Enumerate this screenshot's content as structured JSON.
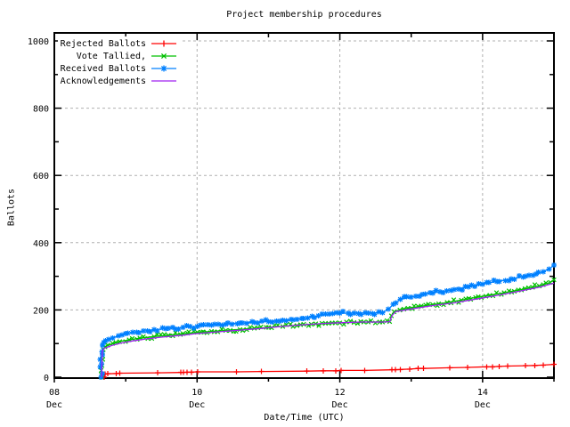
{
  "chart": {
    "title": "Project membership procedures",
    "xlabel": "Date/Time (UTC)",
    "ylabel": "Ballots"
  },
  "colors": {
    "background": "#ffffff",
    "border": "#000000",
    "grid": "#b0b0b0",
    "text": "#000000"
  },
  "chart_data": {
    "type": "line",
    "title": "Project membership procedures",
    "xlabel": "Date/Time (UTC)",
    "ylabel": "Ballots",
    "x_unit": "days since 08 Dec 00:00 (UTC)",
    "xlim": [
      0,
      7
    ],
    "ylim": [
      0,
      1000
    ],
    "grid": true,
    "grid_style": "dashed",
    "legend_position": "top-left-inside",
    "xticks": [
      {
        "day": 0,
        "line1": "08",
        "line2": "Dec"
      },
      {
        "day": 2,
        "line1": "10",
        "line2": "Dec"
      },
      {
        "day": 4,
        "line1": "12",
        "line2": "Dec"
      },
      {
        "day": 6,
        "line1": "14",
        "line2": "Dec"
      }
    ],
    "xticks_minor_days": [
      1,
      3,
      5,
      7
    ],
    "yticks": [
      0,
      200,
      400,
      600,
      800,
      1000
    ],
    "yticks_minor": [
      100,
      300,
      500,
      700,
      900
    ],
    "series": [
      {
        "name": "Rejected Ballots",
        "color": "#ff0000",
        "marker": "plus",
        "dense": false,
        "points": [
          [
            0.7,
            0
          ],
          [
            0.71,
            9
          ],
          [
            0.75,
            10
          ],
          [
            0.87,
            11
          ],
          [
            0.92,
            12
          ],
          [
            1.45,
            13
          ],
          [
            1.77,
            14
          ],
          [
            1.81,
            14
          ],
          [
            1.86,
            15
          ],
          [
            1.92,
            15
          ],
          [
            2.01,
            16
          ],
          [
            2.55,
            16
          ],
          [
            2.9,
            17
          ],
          [
            3.54,
            18
          ],
          [
            3.77,
            19
          ],
          [
            3.94,
            19
          ],
          [
            4.02,
            20
          ],
          [
            4.35,
            20
          ],
          [
            4.73,
            22
          ],
          [
            4.78,
            22
          ],
          [
            4.85,
            23
          ],
          [
            4.98,
            24
          ],
          [
            5.1,
            26
          ],
          [
            5.17,
            26
          ],
          [
            5.54,
            28
          ],
          [
            5.79,
            29
          ],
          [
            6.06,
            31
          ],
          [
            6.14,
            31
          ],
          [
            6.23,
            32
          ],
          [
            6.35,
            33
          ],
          [
            6.6,
            34
          ],
          [
            6.73,
            35
          ],
          [
            6.85,
            36
          ],
          [
            7.0,
            38
          ]
        ]
      },
      {
        "name": "Vote Tallied,",
        "color": "#00c000",
        "marker": "cross",
        "dense": true,
        "points": [
          [
            0.66,
            0
          ],
          [
            0.666,
            35
          ],
          [
            0.673,
            65
          ],
          [
            0.685,
            82
          ],
          [
            0.71,
            90
          ],
          [
            0.75,
            95
          ],
          [
            0.82,
            100
          ],
          [
            0.92,
            106
          ],
          [
            1.05,
            111
          ],
          [
            1.2,
            116
          ],
          [
            1.4,
            121
          ],
          [
            1.6,
            125
          ],
          [
            1.8,
            129
          ],
          [
            2.0,
            133
          ],
          [
            2.2,
            136
          ],
          [
            2.4,
            139
          ],
          [
            2.6,
            142
          ],
          [
            2.8,
            145
          ],
          [
            3.0,
            148
          ],
          [
            3.2,
            151
          ],
          [
            3.4,
            154
          ],
          [
            3.6,
            157
          ],
          [
            3.8,
            160
          ],
          [
            4.0,
            162
          ],
          [
            4.2,
            163
          ],
          [
            4.4,
            164
          ],
          [
            4.6,
            164
          ],
          [
            4.7,
            165
          ],
          [
            4.72,
            182
          ],
          [
            4.76,
            195
          ],
          [
            4.9,
            203
          ],
          [
            5.1,
            210
          ],
          [
            5.3,
            216
          ],
          [
            5.5,
            222
          ],
          [
            5.7,
            229
          ],
          [
            5.9,
            237
          ],
          [
            6.1,
            244
          ],
          [
            6.3,
            251
          ],
          [
            6.5,
            259
          ],
          [
            6.7,
            267
          ],
          [
            6.85,
            275
          ],
          [
            6.95,
            282
          ],
          [
            7.0,
            290
          ]
        ]
      },
      {
        "name": "Received Ballots",
        "color": "#0080ff",
        "marker": "star",
        "dense": true,
        "points": [
          [
            0.655,
            0
          ],
          [
            0.66,
            40
          ],
          [
            0.666,
            75
          ],
          [
            0.675,
            95
          ],
          [
            0.69,
            103
          ],
          [
            0.72,
            108
          ],
          [
            0.76,
            112
          ],
          [
            0.82,
            117
          ],
          [
            0.9,
            123
          ],
          [
            1.0,
            129
          ],
          [
            1.1,
            133
          ],
          [
            1.25,
            137
          ],
          [
            1.4,
            141
          ],
          [
            1.6,
            145
          ],
          [
            1.8,
            148
          ],
          [
            2.0,
            151
          ],
          [
            2.2,
            155
          ],
          [
            2.4,
            158
          ],
          [
            2.6,
            161
          ],
          [
            2.8,
            163
          ],
          [
            3.0,
            166
          ],
          [
            3.2,
            169
          ],
          [
            3.4,
            172
          ],
          [
            3.55,
            176
          ],
          [
            3.7,
            182
          ],
          [
            3.85,
            188
          ],
          [
            4.0,
            190
          ],
          [
            4.2,
            191
          ],
          [
            4.4,
            191
          ],
          [
            4.6,
            192
          ],
          [
            4.68,
            202
          ],
          [
            4.75,
            217
          ],
          [
            4.85,
            232
          ],
          [
            5.0,
            238
          ],
          [
            5.2,
            247
          ],
          [
            5.4,
            254
          ],
          [
            5.6,
            261
          ],
          [
            5.8,
            268
          ],
          [
            6.0,
            277
          ],
          [
            6.2,
            285
          ],
          [
            6.4,
            292
          ],
          [
            6.6,
            300
          ],
          [
            6.75,
            307
          ],
          [
            6.85,
            314
          ],
          [
            6.93,
            322
          ],
          [
            7.0,
            333
          ]
        ]
      },
      {
        "name": "Acknowledgements",
        "color": "#a020f0",
        "marker": null,
        "dense": false,
        "points": [
          [
            0.662,
            0
          ],
          [
            0.667,
            50
          ],
          [
            0.672,
            78
          ],
          [
            0.7,
            86
          ],
          [
            0.8,
            94
          ],
          [
            0.95,
            102
          ],
          [
            1.1,
            108
          ],
          [
            1.3,
            114
          ],
          [
            1.5,
            119
          ],
          [
            1.8,
            125
          ],
          [
            2.0,
            130
          ],
          [
            2.3,
            135
          ],
          [
            2.6,
            140
          ],
          [
            2.9,
            145
          ],
          [
            3.2,
            151
          ],
          [
            3.5,
            156
          ],
          [
            3.8,
            160
          ],
          [
            4.0,
            162
          ],
          [
            4.3,
            164
          ],
          [
            4.6,
            164
          ],
          [
            4.7,
            165
          ],
          [
            4.73,
            183
          ],
          [
            4.78,
            195
          ],
          [
            5.0,
            203
          ],
          [
            5.3,
            213
          ],
          [
            5.6,
            221
          ],
          [
            5.9,
            232
          ],
          [
            6.2,
            243
          ],
          [
            6.5,
            255
          ],
          [
            6.8,
            268
          ],
          [
            7.0,
            280
          ]
        ]
      }
    ]
  }
}
